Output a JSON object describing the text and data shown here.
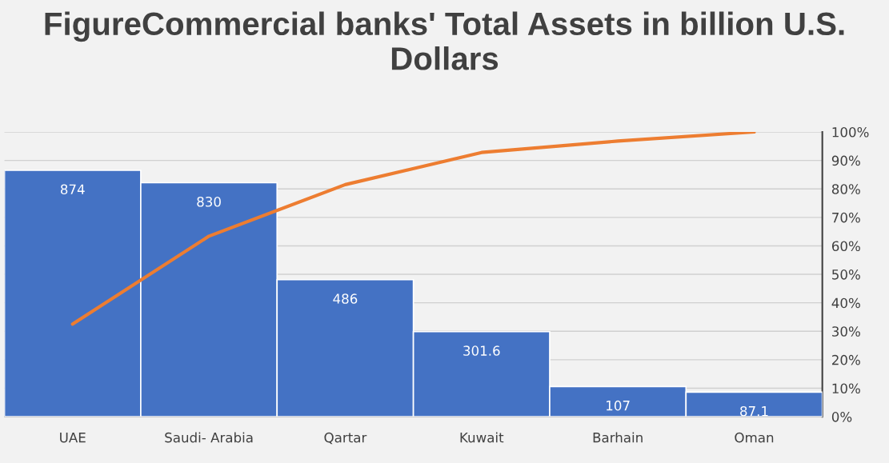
{
  "chart_data": {
    "type": "bar",
    "title": "FigureCommercial banks' Total Assets in billion U.S. Dollars",
    "categories": [
      "UAE",
      "Saudi- Arabia",
      "Qartar",
      "Kuwait",
      "Barhain",
      "Oman"
    ],
    "series": [
      {
        "color": "#4472c4",
        "values": [
          874,
          830,
          486,
          301.6,
          107,
          87.1
        ],
        "value_labels": [
          "874",
          "830",
          "486",
          "301.6",
          "107",
          "87.1"
        ]
      },
      {
        "type": "line",
        "axis": "y2",
        "color": "#ed7d31",
        "values": [
          32.5,
          63.4,
          81.5,
          92.8,
          96.8,
          100
        ]
      }
    ],
    "ylim": [
      0,
      1010
    ],
    "y2lim": [
      0,
      100
    ],
    "y2ticks": [
      {
        "value": 0,
        "label": "0%"
      },
      {
        "value": 10,
        "label": "10%"
      },
      {
        "value": 20,
        "label": "20%"
      },
      {
        "value": 30,
        "label": "30%"
      },
      {
        "value": 40,
        "label": "40%"
      },
      {
        "value": 50,
        "label": "50%"
      },
      {
        "value": 60,
        "label": "60%"
      },
      {
        "value": 70,
        "label": "70%"
      },
      {
        "value": 80,
        "label": "80%"
      },
      {
        "value": 90,
        "label": "90%"
      },
      {
        "value": 100,
        "label": "100%"
      }
    ],
    "grid": "y",
    "marker": "none"
  }
}
